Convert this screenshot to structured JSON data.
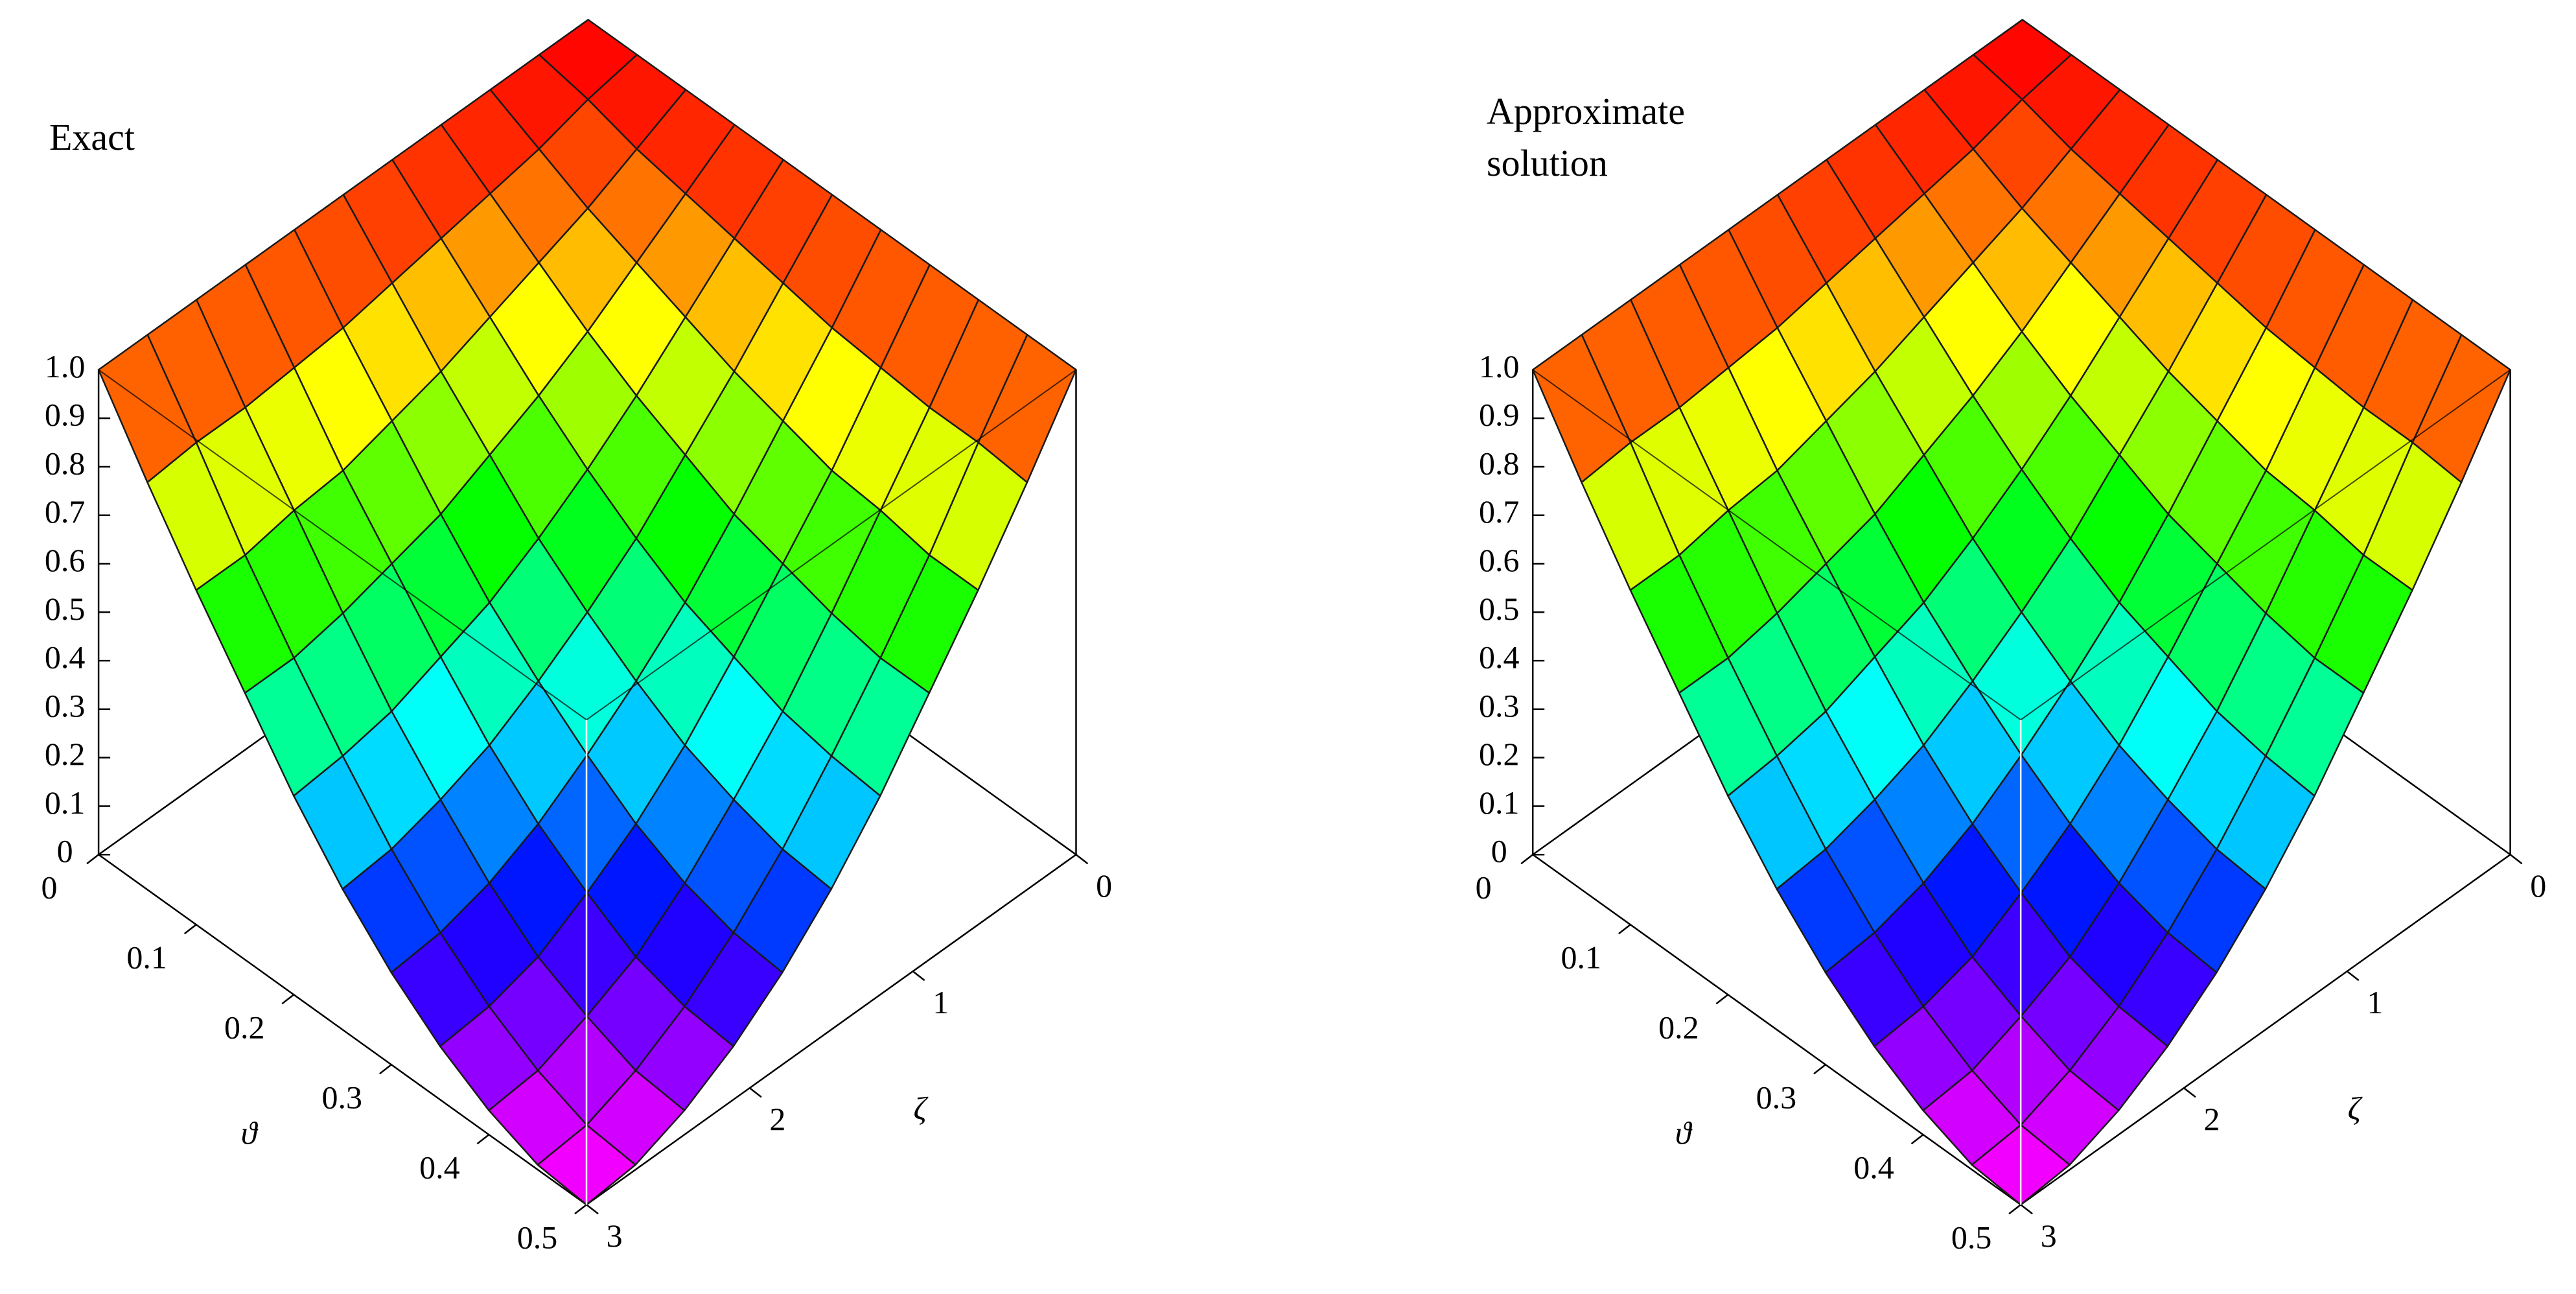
{
  "chart_data": [
    {
      "type": "surface",
      "title": "Exact",
      "xlabel": "ϑ",
      "ylabel": "ζ",
      "x": [
        0,
        0.05,
        0.1,
        0.15,
        0.2,
        0.25,
        0.3,
        0.35,
        0.4,
        0.45,
        0.5
      ],
      "y": [
        0,
        0.3,
        0.6,
        0.9,
        1.2,
        1.5,
        1.8,
        2.1,
        2.4,
        2.7,
        3
      ],
      "z": [
        [
          1,
          1,
          1,
          1,
          1,
          1,
          1,
          1,
          1,
          1,
          1
        ],
        [
          1,
          0.98,
          0.95,
          0.93,
          0.91,
          0.89,
          0.87,
          0.86,
          0.85,
          0.85,
          0.84
        ],
        [
          1,
          0.95,
          0.9,
          0.86,
          0.82,
          0.78,
          0.75,
          0.72,
          0.71,
          0.69,
          0.69
        ],
        [
          1,
          0.93,
          0.86,
          0.79,
          0.73,
          0.68,
          0.63,
          0.6,
          0.57,
          0.55,
          0.55
        ],
        [
          1,
          0.91,
          0.82,
          0.73,
          0.65,
          0.58,
          0.52,
          0.48,
          0.44,
          0.42,
          0.41
        ],
        [
          1,
          0.89,
          0.78,
          0.68,
          0.58,
          0.5,
          0.43,
          0.37,
          0.33,
          0.3,
          0.29
        ],
        [
          1,
          0.87,
          0.75,
          0.63,
          0.52,
          0.43,
          0.35,
          0.28,
          0.23,
          0.2,
          0.19
        ],
        [
          1,
          0.86,
          0.72,
          0.6,
          0.48,
          0.37,
          0.28,
          0.21,
          0.15,
          0.12,
          0.11
        ],
        [
          1,
          0.85,
          0.71,
          0.57,
          0.44,
          0.33,
          0.23,
          0.15,
          0.1,
          0.06,
          0.05
        ],
        [
          1,
          0.85,
          0.69,
          0.55,
          0.42,
          0.3,
          0.2,
          0.12,
          0.06,
          0.02,
          0.01
        ],
        [
          1,
          0.84,
          0.69,
          0.55,
          0.41,
          0.29,
          0.19,
          0.11,
          0.05,
          0.01,
          0
        ]
      ],
      "xlim": [
        0,
        0.5
      ],
      "ylim": [
        0,
        3
      ],
      "zlim": [
        0,
        1
      ],
      "xticks": [
        0,
        0.1,
        0.2,
        0.3,
        0.4,
        0.5
      ],
      "yticks": [
        0,
        1,
        2,
        3
      ],
      "zticks": [
        0,
        0.1,
        0.2,
        0.3,
        0.4,
        0.5,
        0.6,
        0.7,
        0.8,
        0.9,
        {
          "value": 1,
          "label": "1.0"
        }
      ],
      "colormap": "rainbow"
    },
    {
      "type": "surface",
      "title": "Approximate solution",
      "xlabel": "ϑ",
      "ylabel": "ζ",
      "x": [
        0,
        0.05,
        0.1,
        0.15,
        0.2,
        0.25,
        0.3,
        0.35,
        0.4,
        0.45,
        0.5
      ],
      "y": [
        0,
        0.3,
        0.6,
        0.9,
        1.2,
        1.5,
        1.8,
        2.1,
        2.4,
        2.7,
        3
      ],
      "z": [
        [
          1,
          1,
          1,
          1,
          1,
          1,
          1,
          1,
          1,
          1,
          1
        ],
        [
          1,
          0.98,
          0.95,
          0.93,
          0.91,
          0.89,
          0.87,
          0.86,
          0.85,
          0.85,
          0.84
        ],
        [
          1,
          0.95,
          0.9,
          0.86,
          0.82,
          0.78,
          0.75,
          0.72,
          0.71,
          0.69,
          0.69
        ],
        [
          1,
          0.93,
          0.86,
          0.79,
          0.73,
          0.68,
          0.63,
          0.6,
          0.57,
          0.55,
          0.55
        ],
        [
          1,
          0.91,
          0.82,
          0.73,
          0.65,
          0.58,
          0.52,
          0.48,
          0.44,
          0.42,
          0.41
        ],
        [
          1,
          0.89,
          0.78,
          0.68,
          0.58,
          0.5,
          0.43,
          0.37,
          0.33,
          0.3,
          0.29
        ],
        [
          1,
          0.87,
          0.75,
          0.63,
          0.52,
          0.43,
          0.35,
          0.28,
          0.23,
          0.2,
          0.19
        ],
        [
          1,
          0.86,
          0.72,
          0.6,
          0.48,
          0.37,
          0.28,
          0.21,
          0.15,
          0.12,
          0.11
        ],
        [
          1,
          0.85,
          0.71,
          0.57,
          0.44,
          0.33,
          0.23,
          0.15,
          0.1,
          0.06,
          0.05
        ],
        [
          1,
          0.85,
          0.69,
          0.55,
          0.42,
          0.3,
          0.2,
          0.12,
          0.06,
          0.02,
          0.01
        ],
        [
          1,
          0.84,
          0.69,
          0.55,
          0.41,
          0.29,
          0.19,
          0.11,
          0.05,
          0.01,
          0
        ]
      ],
      "xlim": [
        0,
        0.5
      ],
      "ylim": [
        0,
        3
      ],
      "zlim": [
        0,
        1
      ],
      "xticks": [
        0,
        0.1,
        0.2,
        0.3,
        0.4,
        0.5
      ],
      "yticks": [
        0,
        1,
        2,
        3
      ],
      "zticks": [
        0,
        0.1,
        0.2,
        0.3,
        0.4,
        0.5,
        0.6,
        0.7,
        0.8,
        0.9,
        {
          "value": 1,
          "label": "1.0"
        }
      ],
      "colormap": "rainbow"
    }
  ]
}
